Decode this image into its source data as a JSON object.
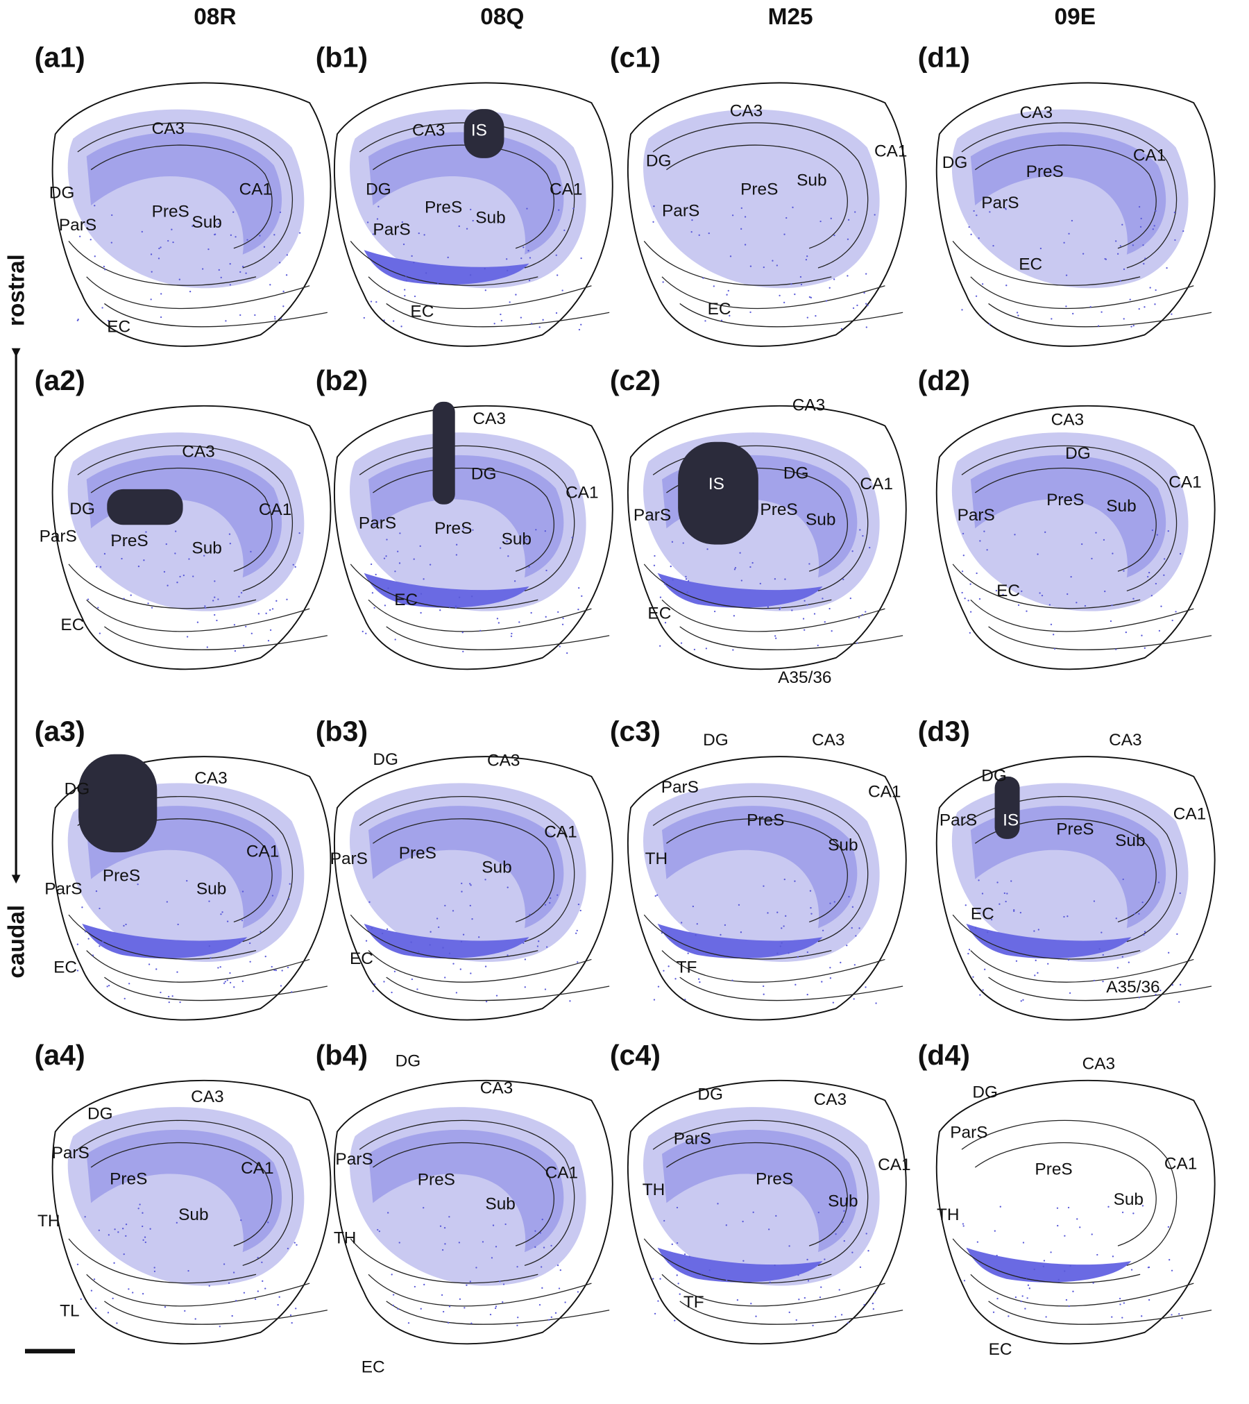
{
  "column_headers": [
    "08R",
    "08Q",
    "M25",
    "09E"
  ],
  "axis": {
    "top": "rostral",
    "bottom": "caudal"
  },
  "panels": [
    {
      "id": "(a1)",
      "labels": [
        "CA3",
        "DG",
        "CA1",
        "ParS",
        "PreS",
        "Sub",
        "EC"
      ]
    },
    {
      "id": "(b1)",
      "labels": [
        "CA3",
        "IS",
        "DG",
        "CA1",
        "PreS",
        "Sub",
        "ParS",
        "EC"
      ]
    },
    {
      "id": "(c1)",
      "labels": [
        "CA3",
        "CA1",
        "DG",
        "PreS",
        "Sub",
        "ParS",
        "EC"
      ]
    },
    {
      "id": "(d1)",
      "labels": [
        "CA3",
        "CA1",
        "DG",
        "PreS",
        "ParS",
        "EC"
      ]
    },
    {
      "id": "(a2)",
      "labels": [
        "CA3",
        "DG",
        "CA1",
        "ParS",
        "PreS",
        "Sub",
        "EC"
      ]
    },
    {
      "id": "(b2)",
      "labels": [
        "CA3",
        "DG",
        "CA1",
        "ParS",
        "PreS",
        "Sub",
        "EC"
      ]
    },
    {
      "id": "(c2)",
      "labels": [
        "CA3",
        "IS",
        "DG",
        "CA1",
        "ParS",
        "PreS",
        "Sub",
        "EC",
        "A35/36"
      ]
    },
    {
      "id": "(d2)",
      "labels": [
        "CA3",
        "DG",
        "CA1",
        "PreS",
        "Sub",
        "ParS",
        "EC"
      ]
    },
    {
      "id": "(a3)",
      "labels": [
        "DG",
        "CA3",
        "CA1",
        "PreS",
        "ParS",
        "Sub",
        "EC"
      ]
    },
    {
      "id": "(b3)",
      "labels": [
        "DG",
        "CA3",
        "CA1",
        "ParS",
        "PreS",
        "Sub",
        "EC"
      ]
    },
    {
      "id": "(c3)",
      "labels": [
        "DG",
        "CA3",
        "CA1",
        "ParS",
        "PreS",
        "Sub",
        "TH",
        "TF"
      ]
    },
    {
      "id": "(d3)",
      "labels": [
        "CA3",
        "DG",
        "CA1",
        "ParS",
        "IS",
        "PreS",
        "Sub",
        "EC",
        "A35/36"
      ]
    },
    {
      "id": "(a4)",
      "labels": [
        "CA3",
        "DG",
        "ParS",
        "CA1",
        "PreS",
        "Sub",
        "TH",
        "TL"
      ]
    },
    {
      "id": "(b4)",
      "labels": [
        "DG",
        "CA3",
        "ParS",
        "CA1",
        "PreS",
        "Sub",
        "TH",
        "EC"
      ]
    },
    {
      "id": "(c4)",
      "labels": [
        "DG",
        "CA3",
        "ParS",
        "CA1",
        "PreS",
        "TH",
        "Sub",
        "TF"
      ]
    },
    {
      "id": "(d4)",
      "labels": [
        "CA3",
        "DG",
        "ParS",
        "PreS",
        "CA1",
        "Sub",
        "TH",
        "EC"
      ]
    }
  ]
}
